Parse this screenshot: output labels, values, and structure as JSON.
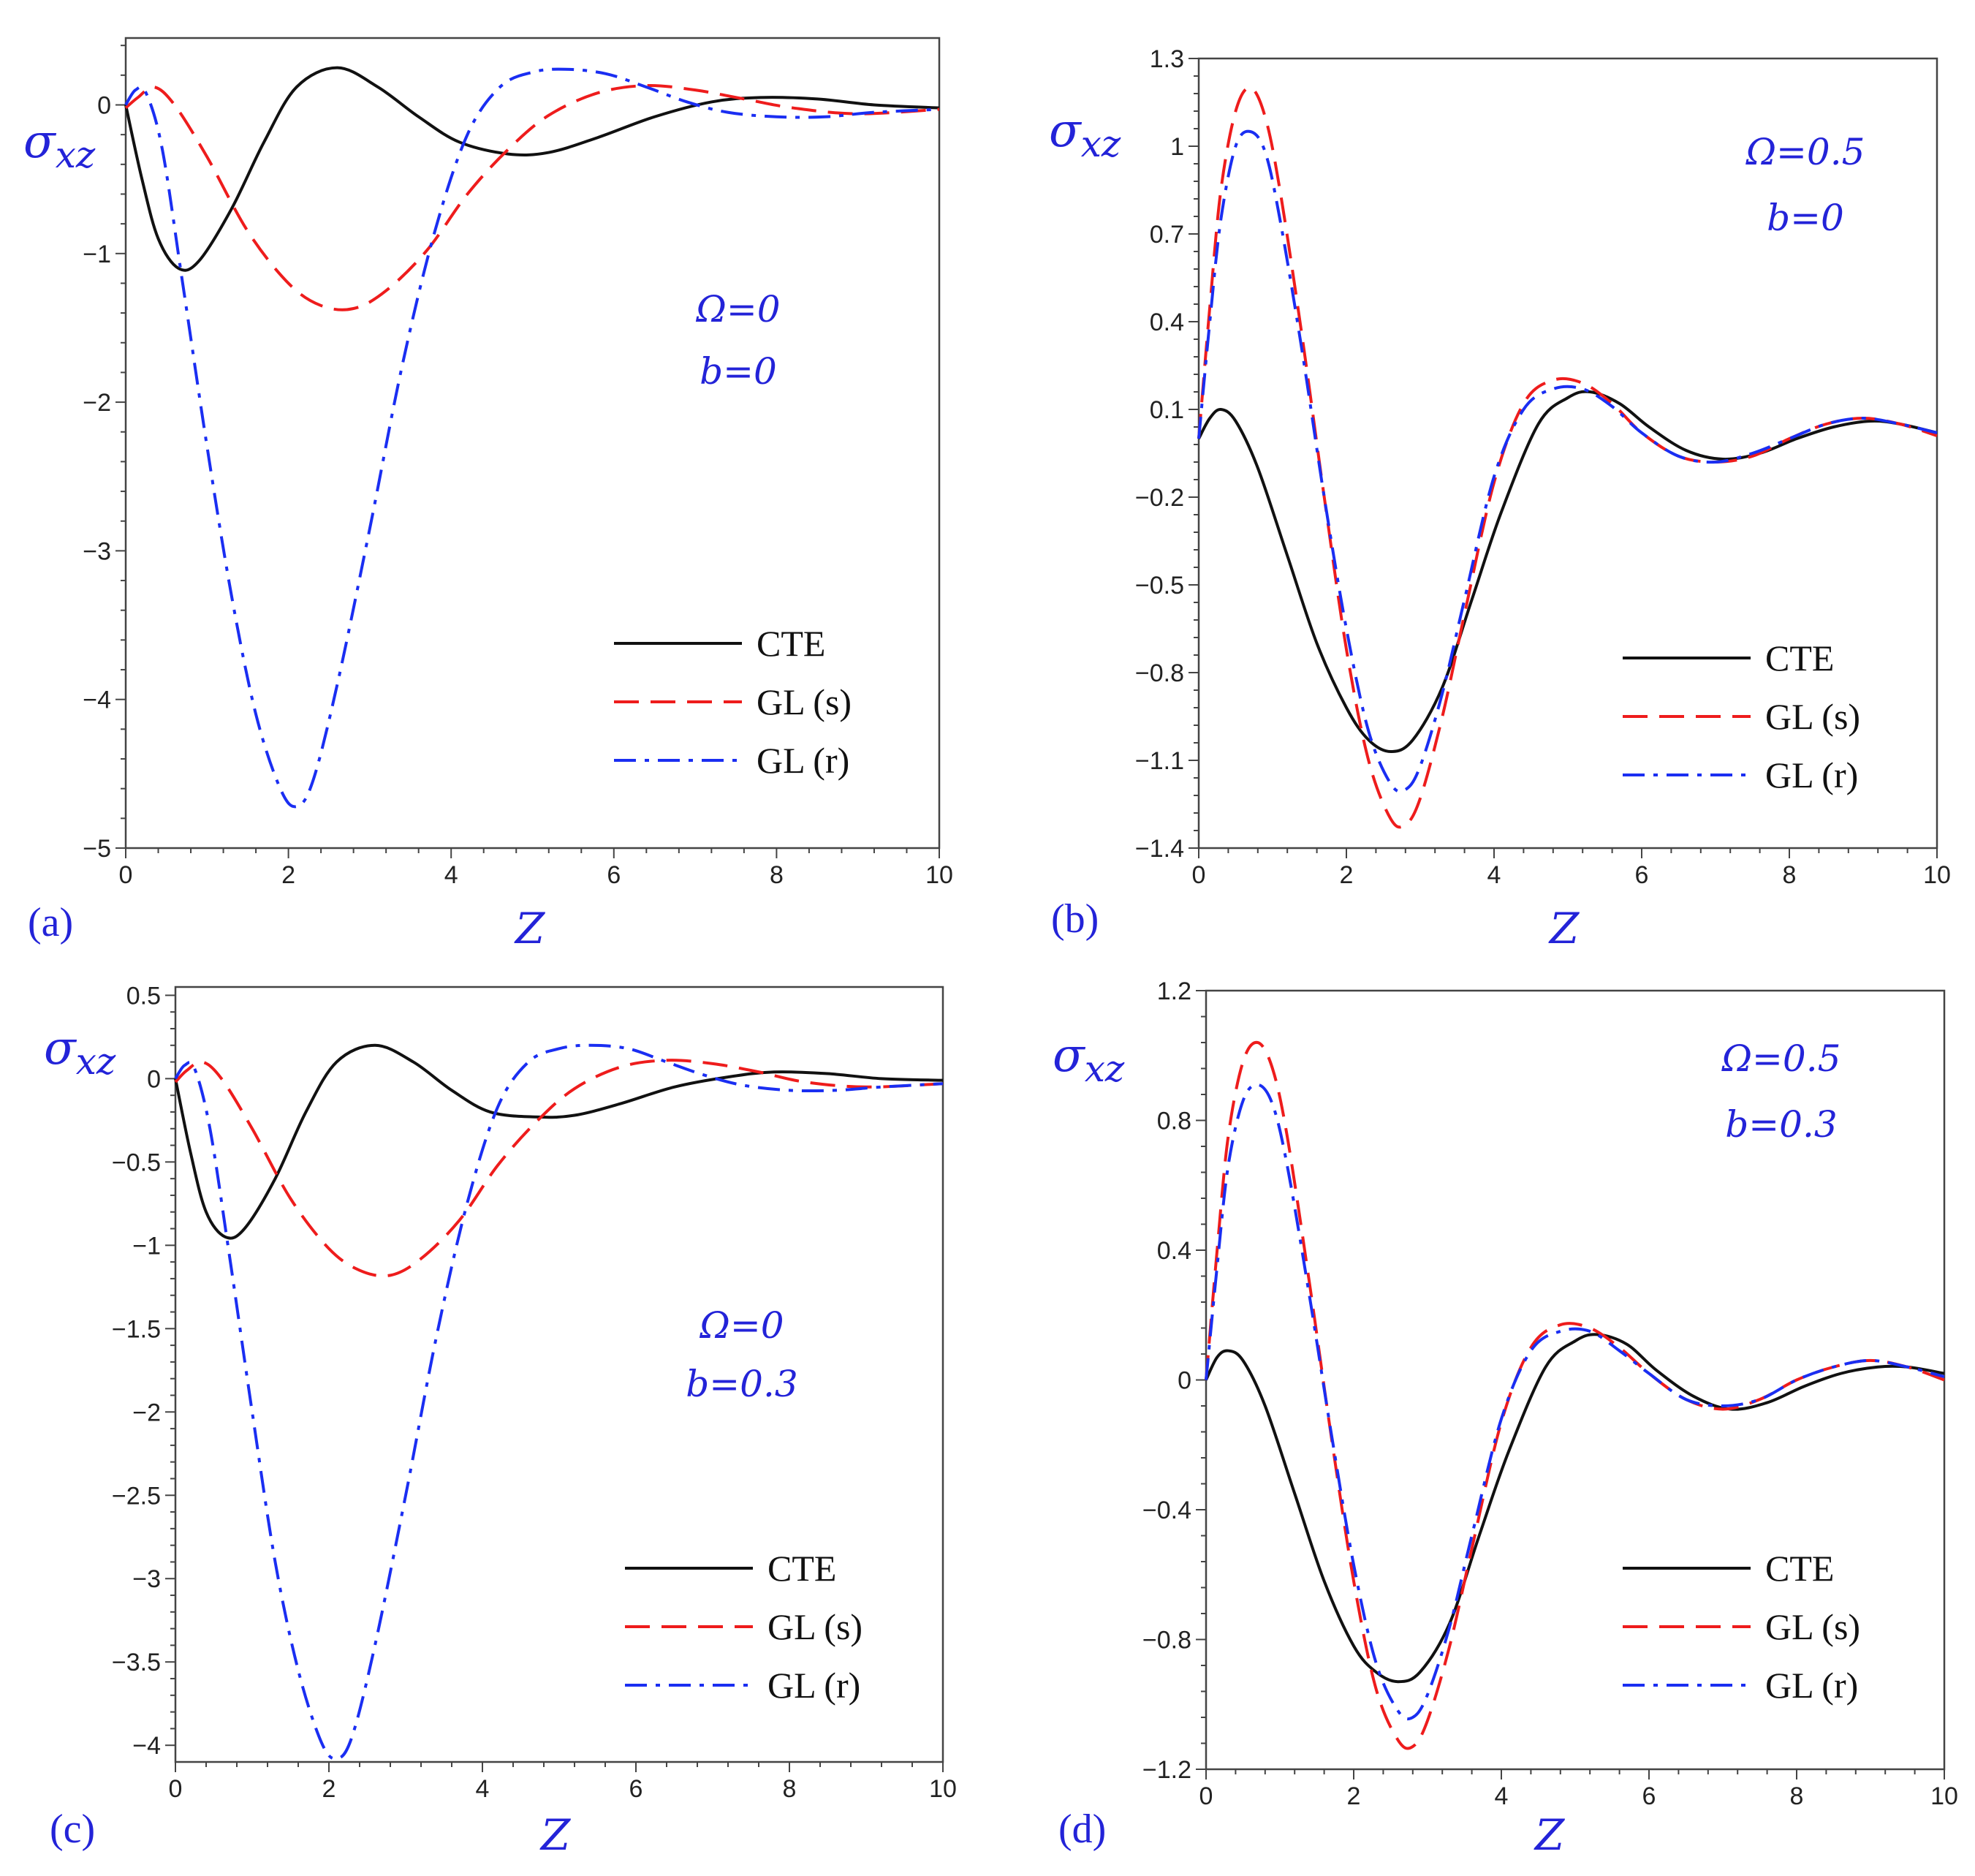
{
  "chart_data": [
    {
      "type": "line",
      "panel_label": "(a)",
      "ylabel_main": "σ",
      "ylabel_sub": "xz",
      "xlabel": "Z",
      "xlim": [
        0,
        10
      ],
      "ylim": [
        -5,
        0.45
      ],
      "xticks": [
        0,
        2,
        4,
        6,
        8,
        10
      ],
      "xtick_labels": [
        "0",
        "2",
        "4",
        "6",
        "8",
        "10"
      ],
      "yticks": [
        0,
        -1,
        -2,
        -3,
        -4,
        -5
      ],
      "ytick_labels": [
        "0",
        "−1",
        "−2",
        "−3",
        "−4",
        "−5"
      ],
      "annotation": [
        "Ω=0",
        "b=0"
      ],
      "series": [
        {
          "name": "CTE",
          "x": [
            0,
            0.2,
            0.4,
            0.65,
            0.9,
            1.3,
            1.7,
            2.1,
            2.6,
            3.1,
            3.6,
            4.1,
            4.7,
            5.2,
            5.8,
            6.5,
            7.2,
            7.8,
            8.5,
            9.2,
            10
          ],
          "values": [
            0,
            -0.5,
            -0.9,
            -1.1,
            -1.05,
            -0.7,
            -0.25,
            0.12,
            0.25,
            0.12,
            -0.08,
            -0.25,
            -0.33,
            -0.32,
            -0.22,
            -0.08,
            0.02,
            0.05,
            0.04,
            0.0,
            -0.02
          ]
        },
        {
          "name": "GL (s)",
          "x": [
            0,
            0.15,
            0.35,
            0.6,
            1.0,
            1.5,
            2.0,
            2.4,
            2.8,
            3.2,
            3.7,
            4.2,
            4.7,
            5.2,
            5.8,
            6.4,
            7.0,
            7.6,
            8.2,
            9.0,
            10
          ],
          "values": [
            -0.02,
            0.05,
            0.12,
            0.0,
            -0.35,
            -0.85,
            -1.2,
            -1.35,
            -1.37,
            -1.25,
            -0.98,
            -0.6,
            -0.3,
            -0.07,
            0.08,
            0.13,
            0.1,
            0.04,
            -0.02,
            -0.06,
            -0.03
          ]
        },
        {
          "name": "GL (r)",
          "x": [
            0,
            0.12,
            0.25,
            0.45,
            0.7,
            1.0,
            1.3,
            1.6,
            1.9,
            2.1,
            2.3,
            2.6,
            3.0,
            3.4,
            3.8,
            4.2,
            4.6,
            5.0,
            5.4,
            5.9,
            6.4,
            6.9,
            7.4,
            8.0,
            8.6,
            9.2,
            10
          ],
          "values": [
            0,
            0.1,
            0.08,
            -0.3,
            -1.2,
            -2.3,
            -3.3,
            -4.1,
            -4.6,
            -4.72,
            -4.55,
            -3.9,
            -2.85,
            -1.75,
            -0.85,
            -0.2,
            0.12,
            0.22,
            0.24,
            0.21,
            0.12,
            0.02,
            -0.05,
            -0.08,
            -0.08,
            -0.05,
            -0.03
          ]
        }
      ],
      "legend": [
        "CTE",
        "GL (s)",
        "GL (r)"
      ],
      "legend_position": "bottom-right"
    },
    {
      "type": "line",
      "panel_label": "(b)",
      "ylabel_main": "σ",
      "ylabel_sub": "xz",
      "xlabel": "Z",
      "xlim": [
        0,
        10
      ],
      "ylim": [
        -1.4,
        1.3
      ],
      "xticks": [
        0,
        2,
        4,
        6,
        8,
        10
      ],
      "xtick_labels": [
        "0",
        "2",
        "4",
        "6",
        "8",
        "10"
      ],
      "yticks": [
        1.3,
        1,
        0.7,
        0.4,
        0.1,
        -0.2,
        -0.5,
        -0.8,
        -1.1,
        -1.4
      ],
      "ytick_labels": [
        "1.3",
        "1",
        "0.7",
        "0.4",
        "0.1",
        "−0.2",
        "−0.5",
        "−0.8",
        "−1.1",
        "−1.4"
      ],
      "annotation": [
        "Ω=0.5",
        "b=0"
      ],
      "series": [
        {
          "name": "CTE",
          "x": [
            0,
            0.15,
            0.3,
            0.5,
            0.8,
            1.2,
            1.6,
            2.0,
            2.3,
            2.6,
            2.9,
            3.3,
            3.7,
            4.1,
            4.6,
            5.0,
            5.3,
            5.7,
            6.1,
            6.6,
            7.1,
            7.6,
            8.1,
            8.6,
            9.1,
            9.5,
            10
          ],
          "values": [
            0,
            0.07,
            0.1,
            0.06,
            -0.1,
            -0.4,
            -0.7,
            -0.92,
            -1.03,
            -1.07,
            -1.03,
            -0.85,
            -0.55,
            -0.25,
            0.05,
            0.14,
            0.16,
            0.12,
            0.04,
            -0.04,
            -0.07,
            -0.05,
            0.0,
            0.04,
            0.06,
            0.05,
            0.02
          ]
        },
        {
          "name": "GL (s)",
          "x": [
            0,
            0.15,
            0.3,
            0.5,
            0.7,
            0.9,
            1.1,
            1.4,
            1.7,
            2.0,
            2.3,
            2.6,
            2.8,
            3.0,
            3.3,
            3.6,
            4.0,
            4.4,
            4.8,
            5.2,
            5.6,
            6.0,
            6.5,
            7.0,
            7.5,
            8.0,
            8.5,
            9.0,
            9.5,
            10
          ],
          "values": [
            0,
            0.45,
            0.85,
            1.12,
            1.2,
            1.1,
            0.85,
            0.35,
            -0.2,
            -0.72,
            -1.1,
            -1.3,
            -1.32,
            -1.23,
            -0.95,
            -0.6,
            -0.15,
            0.12,
            0.2,
            0.19,
            0.12,
            0.02,
            -0.06,
            -0.08,
            -0.06,
            0.0,
            0.05,
            0.07,
            0.05,
            0.01
          ]
        },
        {
          "name": "GL (r)",
          "x": [
            0,
            0.15,
            0.3,
            0.5,
            0.7,
            0.9,
            1.1,
            1.4,
            1.7,
            2.0,
            2.3,
            2.6,
            2.8,
            3.0,
            3.3,
            3.6,
            4.0,
            4.4,
            4.8,
            5.2,
            5.6,
            6.0,
            6.5,
            7.0,
            7.5,
            8.0,
            8.5,
            9.0,
            9.5,
            10
          ],
          "values": [
            0,
            0.4,
            0.75,
            1.0,
            1.05,
            0.98,
            0.75,
            0.3,
            -0.2,
            -0.65,
            -1.0,
            -1.18,
            -1.2,
            -1.12,
            -0.87,
            -0.55,
            -0.13,
            0.1,
            0.17,
            0.17,
            0.11,
            0.02,
            -0.06,
            -0.08,
            -0.05,
            0.0,
            0.05,
            0.07,
            0.05,
            0.02
          ]
        }
      ],
      "legend": [
        "CTE",
        "GL (s)",
        "GL (r)"
      ],
      "legend_position": "bottom-right"
    },
    {
      "type": "line",
      "panel_label": "(c)",
      "ylabel_main": "σ",
      "ylabel_sub": "xz",
      "xlabel": "Z",
      "xlim": [
        0,
        10
      ],
      "ylim": [
        -4.1,
        0.55
      ],
      "xticks": [
        0,
        2,
        4,
        6,
        8,
        10
      ],
      "xtick_labels": [
        "0",
        "2",
        "4",
        "6",
        "8",
        "10"
      ],
      "yticks": [
        0.5,
        0,
        -0.5,
        -1,
        -1.5,
        -2,
        -2.5,
        -3,
        -3.5,
        -4
      ],
      "ytick_labels": [
        "0.5",
        "0",
        "−0.5",
        "−1",
        "−1.5",
        "−2",
        "−2.5",
        "−3",
        "−3.5",
        "−4"
      ],
      "annotation": [
        "Ω=0",
        "b=0.3"
      ],
      "series": [
        {
          "name": "CTE",
          "x": [
            0,
            0.2,
            0.4,
            0.65,
            0.9,
            1.3,
            1.7,
            2.1,
            2.6,
            3.1,
            3.6,
            4.1,
            4.7,
            5.2,
            5.8,
            6.5,
            7.2,
            7.8,
            8.5,
            9.2,
            10
          ],
          "values": [
            0,
            -0.45,
            -0.8,
            -0.95,
            -0.9,
            -0.6,
            -0.2,
            0.1,
            0.2,
            0.1,
            -0.07,
            -0.2,
            -0.23,
            -0.22,
            -0.15,
            -0.05,
            0.01,
            0.04,
            0.03,
            0.0,
            -0.01
          ]
        },
        {
          "name": "GL (s)",
          "x": [
            0,
            0.15,
            0.35,
            0.6,
            1.0,
            1.5,
            2.0,
            2.4,
            2.8,
            3.2,
            3.7,
            4.2,
            4.7,
            5.2,
            5.8,
            6.4,
            7.0,
            7.6,
            8.2,
            9.0,
            10
          ],
          "values": [
            -0.02,
            0.05,
            0.1,
            0.0,
            -0.3,
            -0.72,
            -1.02,
            -1.15,
            -1.18,
            -1.08,
            -0.85,
            -0.52,
            -0.26,
            -0.06,
            0.07,
            0.11,
            0.09,
            0.04,
            -0.02,
            -0.05,
            -0.03
          ]
        },
        {
          "name": "GL (r)",
          "x": [
            0,
            0.12,
            0.25,
            0.45,
            0.7,
            1.0,
            1.3,
            1.6,
            1.9,
            2.1,
            2.3,
            2.6,
            3.0,
            3.4,
            3.8,
            4.2,
            4.6,
            5.0,
            5.4,
            5.9,
            6.4,
            6.9,
            7.4,
            8.0,
            8.6,
            9.2,
            10
          ],
          "values": [
            0,
            0.08,
            0.06,
            -0.3,
            -1.05,
            -2.0,
            -2.9,
            -3.55,
            -3.98,
            -4.08,
            -3.95,
            -3.4,
            -2.5,
            -1.55,
            -0.75,
            -0.17,
            0.1,
            0.18,
            0.2,
            0.18,
            0.1,
            0.02,
            -0.04,
            -0.07,
            -0.07,
            -0.05,
            -0.03
          ]
        }
      ],
      "legend": [
        "CTE",
        "GL (s)",
        "GL (r)"
      ],
      "legend_position": "bottom-right"
    },
    {
      "type": "line",
      "panel_label": "(d)",
      "ylabel_main": "σ",
      "ylabel_sub": "xz",
      "xlabel": "Z",
      "xlim": [
        0,
        10
      ],
      "ylim": [
        -1.2,
        1.2
      ],
      "xticks": [
        0,
        2,
        4,
        6,
        8,
        10
      ],
      "xtick_labels": [
        "0",
        "2",
        "4",
        "6",
        "8",
        "10"
      ],
      "yticks": [
        1.2,
        0.8,
        0.4,
        0,
        -0.4,
        -0.8,
        -1.2
      ],
      "ytick_labels": [
        "1.2",
        "0.8",
        "0.4",
        "0",
        "−0.4",
        "−0.8",
        "−1.2"
      ],
      "annotation": [
        "Ω=0.5",
        "b=0.3"
      ],
      "series": [
        {
          "name": "CTE",
          "x": [
            0,
            0.15,
            0.3,
            0.5,
            0.8,
            1.2,
            1.6,
            2.0,
            2.3,
            2.6,
            2.9,
            3.3,
            3.7,
            4.1,
            4.6,
            5.0,
            5.3,
            5.7,
            6.1,
            6.6,
            7.1,
            7.6,
            8.1,
            8.6,
            9.1,
            9.5,
            10
          ],
          "values": [
            0,
            0.07,
            0.09,
            0.06,
            -0.08,
            -0.35,
            -0.62,
            -0.82,
            -0.9,
            -0.93,
            -0.9,
            -0.75,
            -0.48,
            -0.22,
            0.04,
            0.12,
            0.14,
            0.11,
            0.03,
            -0.05,
            -0.09,
            -0.07,
            -0.02,
            0.02,
            0.04,
            0.04,
            0.02
          ]
        },
        {
          "name": "GL (s)",
          "x": [
            0,
            0.15,
            0.3,
            0.5,
            0.7,
            0.9,
            1.1,
            1.4,
            1.7,
            2.0,
            2.3,
            2.6,
            2.8,
            3.0,
            3.3,
            3.6,
            4.0,
            4.4,
            4.8,
            5.2,
            5.6,
            6.0,
            6.5,
            7.0,
            7.5,
            8.0,
            8.5,
            9.0,
            9.5,
            10
          ],
          "values": [
            0,
            0.4,
            0.75,
            0.98,
            1.04,
            0.96,
            0.75,
            0.3,
            -0.18,
            -0.62,
            -0.95,
            -1.11,
            -1.13,
            -1.05,
            -0.82,
            -0.52,
            -0.13,
            0.1,
            0.17,
            0.16,
            0.1,
            0.02,
            -0.06,
            -0.09,
            -0.06,
            0.0,
            0.04,
            0.06,
            0.04,
            0.0
          ]
        },
        {
          "name": "GL (r)",
          "x": [
            0,
            0.15,
            0.3,
            0.5,
            0.7,
            0.9,
            1.1,
            1.4,
            1.7,
            2.0,
            2.3,
            2.6,
            2.8,
            3.0,
            3.3,
            3.6,
            4.0,
            4.4,
            4.8,
            5.2,
            5.6,
            6.0,
            6.5,
            7.0,
            7.5,
            8.0,
            8.5,
            9.0,
            9.5,
            10
          ],
          "values": [
            0,
            0.35,
            0.66,
            0.86,
            0.91,
            0.85,
            0.66,
            0.26,
            -0.17,
            -0.57,
            -0.87,
            -1.02,
            -1.04,
            -0.97,
            -0.76,
            -0.48,
            -0.12,
            0.09,
            0.15,
            0.15,
            0.09,
            0.02,
            -0.06,
            -0.08,
            -0.06,
            0.0,
            0.04,
            0.06,
            0.04,
            0.01
          ]
        }
      ],
      "legend": [
        "CTE",
        "GL (s)",
        "GL (r)"
      ],
      "legend_position": "bottom-right"
    }
  ],
  "styles": {
    "series_colors": {
      "CTE": "#111111",
      "GL (s)": "#ee1c1c",
      "GL (r)": "#1a2ef2"
    },
    "label_color": "#2323d8"
  }
}
